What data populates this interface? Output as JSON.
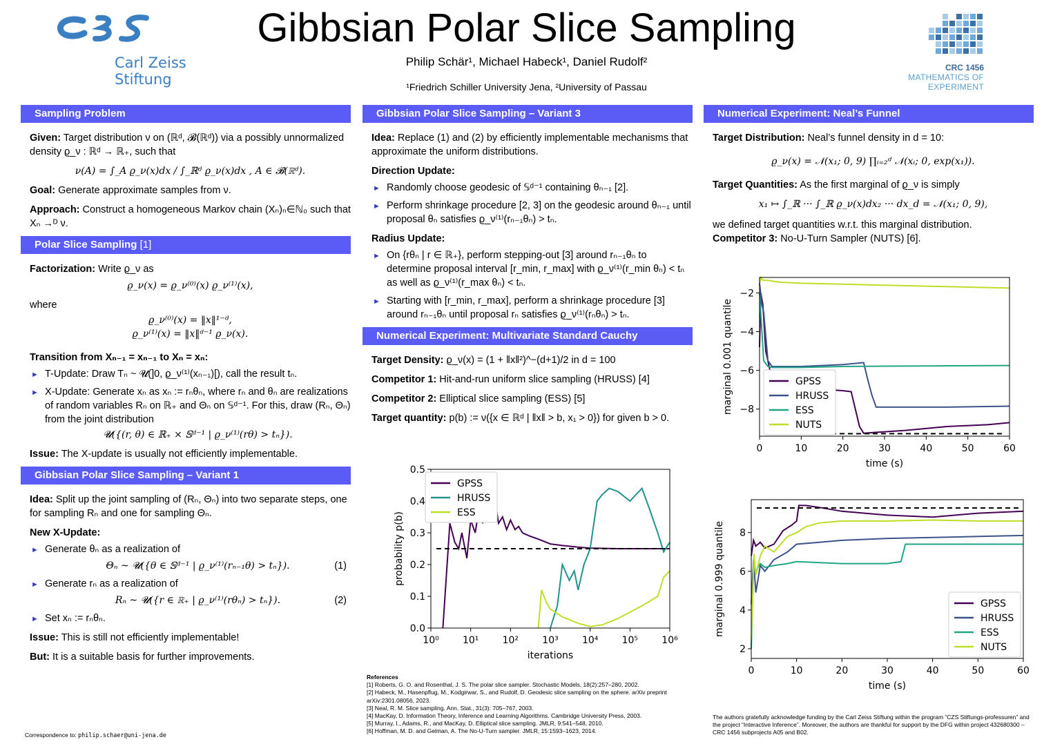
{
  "header": {
    "title": "Gibbsian Polar Slice Sampling",
    "authors": "Philip Schär¹, Michael Habeck¹, Daniel Rudolf²",
    "affiliations": "¹Friedrich Schiller University Jena, ²University of Passau",
    "logo_left_line1": "Carl Zeiss",
    "logo_left_line2": "Stiftung",
    "logo_right_title": "CRC 1456",
    "logo_right_sub1": "MATHEMATICS OF",
    "logo_right_sub2": "EXPERIMENT"
  },
  "sections": {
    "sampling_problem": "Sampling Problem",
    "polar_slice": "Polar Slice Sampling",
    "polar_slice_ref": "[1]",
    "variant1": "Gibbsian Polar Slice Sampling – Variant 1",
    "variant3": "Gibbsian Polar Slice Sampling – Variant 3",
    "cauchy": "Numerical Experiment: Multivariate Standard Cauchy",
    "funnel": "Numerical Experiment: Neal’s Funnel"
  },
  "col1": {
    "given_label": "Given:",
    "given_text": "Target distribution ν on (ℝᵈ, 𝓑(ℝᵈ)) via a possibly unnormalized density ϱ_ν : ℝᵈ → ℝ₊, such that",
    "given_eq": "ν(A) = ∫_A ϱ_ν(x)dx / ∫_ℝᵈ ϱ_ν(x)dx ,      A ∈ 𝓑(ℝᵈ).",
    "goal_label": "Goal:",
    "goal_text": "Generate approximate samples from ν.",
    "approach_label": "Approach:",
    "approach_text": "Construct a homogeneous Markov chain (Xₙ)ₙ∈ℕ₀ such that Xₙ →ᴰ ν.",
    "fact_label": "Factorization:",
    "fact_text": "Write ϱ_ν as",
    "fact_eq": "ϱ_ν(x) = ϱ_ν⁽⁰⁾(x) ϱ_ν⁽¹⁾(x),",
    "where": "where",
    "where_eq1": "ϱ_ν⁽⁰⁾(x) = ‖x‖¹⁻ᵈ,",
    "where_eq2": "ϱ_ν⁽¹⁾(x) = ‖x‖ᵈ⁻¹ ϱ_ν(x).",
    "transition_label": "Transition from Xₙ₋₁ = xₙ₋₁ to Xₙ = xₙ:",
    "t_update": "T-Update: Draw Tₙ ~ 𝓤(]0, ϱ_ν⁽¹⁾(xₙ₋₁)[), call the result tₙ.",
    "x_update": "X-Update: Generate xₙ as xₙ := rₙθₙ, where rₙ and θₙ are realizations of random variables Rₙ on ℝ₊ and Θₙ on 𝕊ᵈ⁻¹. For this, draw (Rₙ, Θₙ) from the joint distribution",
    "x_update_eq": "𝓤({(r, θ) ∈ ℝ₊ × 𝕊ᵈ⁻¹ | ϱ_ν⁽¹⁾(rθ) > tₙ}).",
    "issue1_label": "Issue:",
    "issue1_text": "The X-update is usually not efficiently implementable.",
    "v1_idea_label": "Idea:",
    "v1_idea_text": "Split up the joint sampling of (Rₙ, Θₙ) into two separate steps, one for sampling Rₙ and one for sampling Θₙ.",
    "v1_new_label": "New X-Update:",
    "v1_item1": "Generate θₙ as a realization of",
    "v1_eq1": "Θₙ ~ 𝓤({θ ∈ 𝕊ᵈ⁻¹ | ϱ_ν⁽¹⁾(rₙ₋₁θ) > tₙ}).",
    "v1_eq1_num": "(1)",
    "v1_item2": "Generate rₙ as a realization of",
    "v1_eq2": "Rₙ ~ 𝓤({r ∈ ℝ₊ | ϱ_ν⁽¹⁾(rθₙ) > tₙ}).",
    "v1_eq2_num": "(2)",
    "v1_item3": "Set xₙ := rₙθₙ.",
    "issue2_label": "Issue:",
    "issue2_text": "This is still not efficiently implementable!",
    "but_label": "But:",
    "but_text": "It is a suitable basis for further improvements.",
    "correspondence_label": "Correspondence to:",
    "correspondence_email": "philip.schaer@uni-jena.de"
  },
  "col2": {
    "idea_label": "Idea:",
    "idea_text": "Replace (1) and (2) by efficiently implementable mechanisms that approximate the uniform distributions.",
    "dir_label": "Direction Update:",
    "dir_item1": "Randomly choose geodesic of 𝕊ᵈ⁻¹ containing θₙ₋₁ [2].",
    "dir_item2": "Perform shrinkage procedure [2, 3] on the geodesic around θₙ₋₁ until proposal θₙ satisfies ϱ_ν⁽¹⁾(rₙ₋₁θₙ) > tₙ.",
    "rad_label": "Radius Update:",
    "rad_item1": "On {rθₙ | r ∈ ℝ₊}, perform stepping-out [3] around rₙ₋₁θₙ to determine proposal interval [r_min, r_max] with ϱ_ν⁽¹⁾(r_min θₙ) < tₙ as well as ϱ_ν⁽¹⁾(r_max θₙ) < tₙ.",
    "rad_item2": "Starting with [r_min, r_max], perform a shrinkage procedure [3] around rₙ₋₁θₙ until proposal rₙ satisfies ϱ_ν⁽¹⁾(rₙθₙ) > tₙ.",
    "td_label": "Target Density:",
    "td_text": "ϱ_ν(x) = (1 + ‖x‖²)^−(d+1)/2   in d = 100",
    "c1_label": "Competitor 1:",
    "c1_text": "Hit-and-run uniform slice sampling (HRUSS) [4]",
    "c2_label": "Competitor 2:",
    "c2_text": "Elliptical slice sampling (ESS) [5]",
    "tq_label": "Target quantity:",
    "tq_text": "p(b) := ν({x ∈ ℝᵈ | ‖x‖ > b, x₁ > 0}) for given b > 0.",
    "refs_title": "References",
    "refs": [
      "[1] Roberts, G. O. and Rosenthal, J. S. The polar slice sampler. Stochastic Models, 18(2):257–280, 2002.",
      "[2] Habeck, M., Hasenpflug, M., Kodgirwar, S., and Rudolf, D. Geodesic slice sampling on the sphere. arXiv preprint arXiv:2301.08056, 2023.",
      "[3] Neal, R. M. Slice sampling. Ann. Stat., 31(3): 705–767, 2003.",
      "[4] MacKay, D. Information Theory, Inference and Learning Algorithms. Cambridge University Press, 2003.",
      "[5] Murray, I., Adams, R., and MacKay, D. Elliptical slice sampling. JMLR, 9:541–548, 2010.",
      "[6] Hoffman, M. D. and Gelman, A. The No-U-Turn sampler. JMLR, 15:1593–1623, 2014."
    ]
  },
  "col3": {
    "td_label": "Target Distribution:",
    "td_text": "Neal’s funnel density in d = 10:",
    "td_eq": "ϱ_ν(x) = 𝒩(x₁; 0, 9) ∏ᵢ₌₂ᵈ 𝒩(xᵢ; 0, exp(x₁)).",
    "tq_label": "Target Quantities:",
    "tq_text": "As the first marginal of ϱ_ν is simply",
    "tq_eq": "x₁ ↦ ∫_ℝ ··· ∫_ℝ ϱ_ν(x)dx₂ ··· dx_d = 𝒩(x₁; 0, 9),",
    "tq_text2": "we defined target quantities w.r.t. this marginal distribution.",
    "c3_label": "Competitor 3:",
    "c3_text": "No-U-Turn Sampler (NUTS) [6].",
    "ack": "The authors gratefully acknowledge funding by the Carl Zeiss Stiftung within the program “CZS Stiftungs-professuren” and the project “Interactive Inference”. Moreover, the authors are thankful for support by the DFG within project 432680300 – CRC 1456 subprojects A05 and B02."
  },
  "chart_data": [
    {
      "type": "line",
      "xlabel": "iterations",
      "ylabel": "probability p(b)",
      "xscale": "log",
      "xlim": [
        1,
        1000000
      ],
      "ylim": [
        0,
        0.5
      ],
      "xticks": [
        "10⁰",
        "10¹",
        "10²",
        "10³",
        "10⁴",
        "10⁵",
        "10⁶"
      ],
      "yticks": [
        "0.0",
        "0.1",
        "0.2",
        "0.3",
        "0.4",
        "0.5"
      ],
      "reference_line": 0.25,
      "legend_position": "top-left",
      "series": [
        {
          "name": "GPSS",
          "color": "#440154",
          "x": [
            2,
            3,
            4,
            5,
            6,
            8,
            10,
            13,
            16,
            20,
            25,
            32,
            40,
            50,
            63,
            80,
            100,
            130,
            160,
            200,
            300,
            500,
            800,
            1000,
            2000,
            5000,
            10000,
            50000,
            100000,
            500000,
            1000000
          ],
          "y": [
            0.0,
            0.33,
            0.27,
            0.25,
            0.3,
            0.22,
            0.34,
            0.3,
            0.37,
            0.33,
            0.4,
            0.34,
            0.41,
            0.33,
            0.35,
            0.31,
            0.34,
            0.31,
            0.32,
            0.3,
            0.29,
            0.28,
            0.27,
            0.265,
            0.26,
            0.255,
            0.252,
            0.25,
            0.25,
            0.25,
            0.25
          ]
        },
        {
          "name": "HRUSS",
          "color": "#21918c",
          "x": [
            1000,
            1500,
            2000,
            3000,
            4000,
            5000,
            7000,
            10000,
            15000,
            20000,
            30000,
            50000,
            100000,
            200000,
            300000,
            500000,
            700000,
            1000000
          ],
          "y": [
            0.0,
            0.07,
            0.2,
            0.15,
            0.18,
            0.12,
            0.2,
            0.25,
            0.4,
            0.42,
            0.44,
            0.43,
            0.4,
            0.44,
            0.38,
            0.3,
            0.24,
            0.27
          ]
        },
        {
          "name": "ESS",
          "color": "#bddf26",
          "x": [
            500,
            600,
            800,
            1000,
            2000,
            5000,
            10000,
            20000,
            50000,
            100000,
            200000,
            500000,
            700000,
            1000000
          ],
          "y": [
            0.0,
            0.12,
            0.08,
            0.06,
            0.035,
            0.015,
            0.005,
            0.01,
            0.03,
            0.05,
            0.07,
            0.1,
            0.16,
            0.18
          ]
        }
      ]
    },
    {
      "type": "line",
      "xlabel": "time (s)",
      "ylabel": "marginal 0.001 quantile",
      "xlim": [
        0,
        60
      ],
      "ylim": [
        -9.4,
        -1.2
      ],
      "xticks": [
        "0",
        "10",
        "20",
        "30",
        "40",
        "50",
        "60"
      ],
      "yticks": [
        "−8",
        "−6",
        "−4",
        "−2"
      ],
      "reference_line": -9.27,
      "legend_position": "bottom-left",
      "series": [
        {
          "name": "GPSS",
          "color": "#440154",
          "x": [
            0,
            0.3,
            0.8,
            1.5,
            2.5,
            3.5,
            5,
            8,
            12,
            17,
            20,
            22,
            24,
            25,
            28,
            35,
            45,
            55,
            60
          ],
          "y": [
            -4.8,
            -2.0,
            -2.6,
            -5.0,
            -6.0,
            -6.6,
            -6.8,
            -6.9,
            -7.0,
            -7.0,
            -7.05,
            -7.1,
            -8.9,
            -9.25,
            -9.2,
            -9.1,
            -8.9,
            -8.8,
            -8.7
          ],
          "note": "approximate"
        },
        {
          "name": "HRUSS",
          "color": "#3b528b",
          "x": [
            0,
            0.5,
            1,
            2,
            3,
            10,
            20,
            25,
            26,
            27,
            28,
            35,
            45,
            60
          ],
          "y": [
            -1.5,
            -2.5,
            -3.0,
            -5.5,
            -5.8,
            -5.8,
            -5.7,
            -5.6,
            -6.5,
            -7.3,
            -7.9,
            -7.9,
            -7.9,
            -7.85
          ]
        },
        {
          "name": "ESS",
          "color": "#21a685",
          "x": [
            0,
            1,
            2,
            3,
            10,
            20,
            30,
            40,
            50,
            60
          ],
          "y": [
            -2.0,
            -5.5,
            -5.8,
            -5.85,
            -5.85,
            -5.8,
            -5.78,
            -5.77,
            -5.76,
            -5.75
          ]
        },
        {
          "name": "NUTS",
          "color": "#bddf26",
          "x": [
            0,
            0.3,
            0.6,
            1,
            2,
            5,
            10,
            20,
            30,
            40,
            50,
            60
          ],
          "y": [
            -1.5,
            -1.2,
            -1.3,
            -1.35,
            -1.35,
            -1.45,
            -1.5,
            -1.55,
            -1.6,
            -1.65,
            -1.7,
            -1.75
          ]
        }
      ]
    },
    {
      "type": "line",
      "xlabel": "time (s)",
      "ylabel": "marginal 0.999 quantile",
      "xlim": [
        0,
        60
      ],
      "ylim": [
        1.5,
        9.7
      ],
      "xticks": [
        "0",
        "10",
        "20",
        "30",
        "40",
        "50",
        "60"
      ],
      "yticks": [
        "2",
        "4",
        "6",
        "8"
      ],
      "reference_line": 9.27,
      "legend_position": "bottom-right",
      "series": [
        {
          "name": "GPSS",
          "color": "#440154",
          "x": [
            0,
            0.5,
            1,
            2,
            3,
            5,
            7,
            9,
            10,
            10.5,
            12,
            15,
            20,
            30,
            40,
            50,
            60
          ],
          "y": [
            6.8,
            7.6,
            7.3,
            7.5,
            7.2,
            7.4,
            8.1,
            8.4,
            8.6,
            9.4,
            9.4,
            9.3,
            9.1,
            8.9,
            8.8,
            9.0,
            9.1
          ]
        },
        {
          "name": "HRUSS",
          "color": "#3b528b",
          "x": [
            0,
            0.5,
            1,
            2,
            3,
            5,
            8,
            10,
            15,
            20,
            30,
            40,
            50,
            60
          ],
          "y": [
            4.3,
            6.6,
            4.9,
            6.3,
            6.0,
            6.6,
            7.0,
            7.4,
            7.5,
            7.6,
            7.7,
            7.75,
            7.8,
            7.85
          ]
        },
        {
          "name": "ESS",
          "color": "#21a685",
          "x": [
            0,
            0.5,
            1,
            2,
            3,
            5,
            8,
            10,
            20,
            30,
            33,
            34,
            40,
            50,
            60
          ],
          "y": [
            2.0,
            6.3,
            6.0,
            6.4,
            6.2,
            6.3,
            6.4,
            6.5,
            6.4,
            6.4,
            6.5,
            7.4,
            7.4,
            7.4,
            7.4
          ]
        },
        {
          "name": "NUTS",
          "color": "#bddf26",
          "x": [
            0,
            0.3,
            0.6,
            1,
            2,
            3,
            5,
            8,
            10,
            12,
            15,
            20,
            30,
            40,
            50,
            60
          ],
          "y": [
            2.5,
            4.6,
            6.9,
            5.8,
            6.8,
            7.3,
            7.0,
            7.8,
            8.0,
            8.3,
            8.5,
            8.6,
            8.6,
            8.65,
            8.6,
            8.6
          ]
        }
      ]
    }
  ]
}
